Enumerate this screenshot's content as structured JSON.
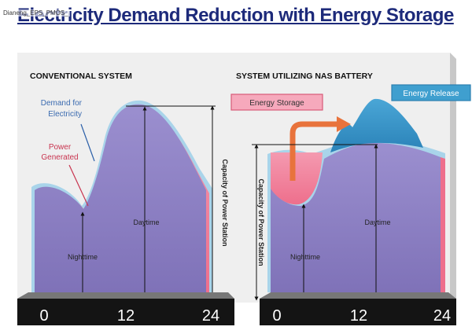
{
  "title": "Electricity Demand Reduction with Energy Storage",
  "watermark": "Dianeng_EPS_PMOS_",
  "left_panel": {
    "heading": "CONVENTIONAL SYSTEM",
    "demand_label_line1": "Demand for",
    "demand_label_line2": "Electricity",
    "power_label_line1": "Power",
    "power_label_line2": "Generated",
    "daytime": "Daytime",
    "nighttime": "Nighttime",
    "capacity": "Capacity of Power Station",
    "axis": [
      "0",
      "12",
      "24"
    ]
  },
  "right_panel": {
    "heading": "SYSTEM UTILIZING NAS BATTERY",
    "energy_storage": "Energy Storage",
    "energy_release": "Energy Release",
    "daytime": "Daytime",
    "nighttime": "Nighttime",
    "capacity": "Capacity of Power Station",
    "axis": [
      "0",
      "12",
      "24"
    ]
  },
  "colors": {
    "title": "#1d2a7a",
    "panel_bg": "#efefef",
    "purple": "#8a7fc0",
    "pink": "#f07a95",
    "light_blue": "#a9d4ea",
    "teal": "#2d8bbf",
    "orange": "#e8733c",
    "axis_bar": "#141414"
  }
}
